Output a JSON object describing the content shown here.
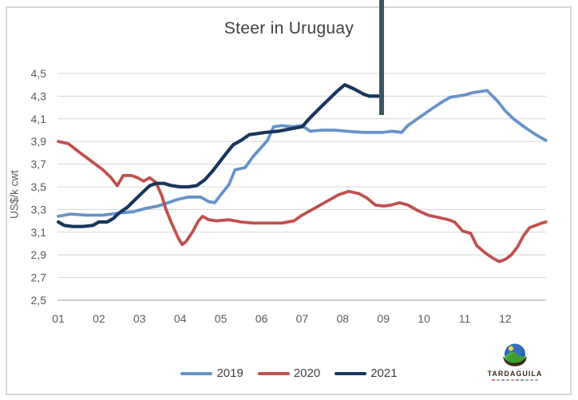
{
  "chart_data": {
    "type": "line",
    "title": "Steer in Uruguay",
    "ylabel": "US$/k cwt",
    "ylim": [
      2.5,
      4.5
    ],
    "ytick_step": 0.2,
    "decimal_separator": ",",
    "x_range": [
      1,
      13
    ],
    "grid": true,
    "legend_position": "bottom",
    "y_tick_labels": [
      "4,5",
      "4,3",
      "4,1",
      "3,9",
      "3,7",
      "3,5",
      "3,3",
      "3,1",
      "2,9",
      "2,7",
      "2,5"
    ],
    "x_tick_labels": [
      "01",
      "02",
      "03",
      "04",
      "05",
      "06",
      "07",
      "08",
      "09",
      "10",
      "11",
      "12"
    ],
    "series": [
      {
        "name": "2019",
        "color": "#6593c9",
        "points": [
          [
            1.0,
            3.24
          ],
          [
            1.3,
            3.26
          ],
          [
            1.7,
            3.25
          ],
          [
            2.1,
            3.25
          ],
          [
            2.5,
            3.27
          ],
          [
            2.85,
            3.28
          ],
          [
            3.15,
            3.31
          ],
          [
            3.45,
            3.33
          ],
          [
            3.7,
            3.36
          ],
          [
            3.95,
            3.39
          ],
          [
            4.2,
            3.41
          ],
          [
            4.5,
            3.41
          ],
          [
            4.7,
            3.37
          ],
          [
            4.85,
            3.36
          ],
          [
            5.0,
            3.43
          ],
          [
            5.2,
            3.52
          ],
          [
            5.35,
            3.65
          ],
          [
            5.6,
            3.67
          ],
          [
            5.8,
            3.77
          ],
          [
            6.0,
            3.85
          ],
          [
            6.15,
            3.91
          ],
          [
            6.3,
            4.03
          ],
          [
            6.5,
            4.04
          ],
          [
            6.75,
            4.03
          ],
          [
            7.0,
            4.04
          ],
          [
            7.2,
            3.99
          ],
          [
            7.5,
            4.0
          ],
          [
            7.8,
            4.0
          ],
          [
            8.1,
            3.99
          ],
          [
            8.5,
            3.98
          ],
          [
            8.8,
            3.98
          ],
          [
            9.0,
            3.98
          ],
          [
            9.2,
            3.99
          ],
          [
            9.45,
            3.98
          ],
          [
            9.6,
            4.04
          ],
          [
            9.8,
            4.09
          ],
          [
            10.0,
            4.14
          ],
          [
            10.2,
            4.19
          ],
          [
            10.45,
            4.25
          ],
          [
            10.65,
            4.29
          ],
          [
            11.0,
            4.31
          ],
          [
            11.2,
            4.33
          ],
          [
            11.55,
            4.35
          ],
          [
            11.8,
            4.26
          ],
          [
            12.0,
            4.17
          ],
          [
            12.2,
            4.1
          ],
          [
            12.5,
            4.02
          ],
          [
            12.75,
            3.96
          ],
          [
            13.0,
            3.91
          ]
        ]
      },
      {
        "name": "2020",
        "color": "#c0504d",
        "points": [
          [
            1.0,
            3.9
          ],
          [
            1.25,
            3.88
          ],
          [
            1.5,
            3.81
          ],
          [
            1.8,
            3.73
          ],
          [
            2.1,
            3.65
          ],
          [
            2.3,
            3.58
          ],
          [
            2.45,
            3.51
          ],
          [
            2.6,
            3.6
          ],
          [
            2.8,
            3.6
          ],
          [
            2.95,
            3.58
          ],
          [
            3.1,
            3.55
          ],
          [
            3.25,
            3.58
          ],
          [
            3.4,
            3.54
          ],
          [
            3.55,
            3.42
          ],
          [
            3.65,
            3.3
          ],
          [
            3.8,
            3.17
          ],
          [
            3.95,
            3.05
          ],
          [
            4.05,
            2.99
          ],
          [
            4.15,
            3.02
          ],
          [
            4.3,
            3.1
          ],
          [
            4.45,
            3.2
          ],
          [
            4.55,
            3.24
          ],
          [
            4.7,
            3.21
          ],
          [
            4.9,
            3.2
          ],
          [
            5.2,
            3.21
          ],
          [
            5.5,
            3.19
          ],
          [
            5.8,
            3.18
          ],
          [
            6.1,
            3.18
          ],
          [
            6.5,
            3.18
          ],
          [
            6.8,
            3.2
          ],
          [
            7.0,
            3.25
          ],
          [
            7.3,
            3.31
          ],
          [
            7.6,
            3.37
          ],
          [
            7.9,
            3.43
          ],
          [
            8.15,
            3.46
          ],
          [
            8.4,
            3.44
          ],
          [
            8.6,
            3.4
          ],
          [
            8.8,
            3.34
          ],
          [
            9.0,
            3.33
          ],
          [
            9.2,
            3.34
          ],
          [
            9.4,
            3.36
          ],
          [
            9.6,
            3.34
          ],
          [
            9.85,
            3.29
          ],
          [
            10.1,
            3.25
          ],
          [
            10.35,
            3.23
          ],
          [
            10.6,
            3.21
          ],
          [
            10.75,
            3.19
          ],
          [
            10.95,
            3.11
          ],
          [
            11.15,
            3.09
          ],
          [
            11.3,
            2.98
          ],
          [
            11.5,
            2.92
          ],
          [
            11.7,
            2.87
          ],
          [
            11.85,
            2.84
          ],
          [
            12.0,
            2.86
          ],
          [
            12.15,
            2.9
          ],
          [
            12.3,
            2.97
          ],
          [
            12.45,
            3.07
          ],
          [
            12.6,
            3.14
          ],
          [
            12.75,
            3.16
          ],
          [
            12.9,
            3.18
          ],
          [
            13.0,
            3.19
          ]
        ]
      },
      {
        "name": "2021",
        "color": "#17365d",
        "points": [
          [
            1.0,
            3.19
          ],
          [
            1.15,
            3.16
          ],
          [
            1.35,
            3.15
          ],
          [
            1.6,
            3.15
          ],
          [
            1.85,
            3.16
          ],
          [
            2.0,
            3.19
          ],
          [
            2.2,
            3.19
          ],
          [
            2.35,
            3.22
          ],
          [
            2.5,
            3.27
          ],
          [
            2.7,
            3.32
          ],
          [
            2.9,
            3.39
          ],
          [
            3.1,
            3.46
          ],
          [
            3.25,
            3.51
          ],
          [
            3.4,
            3.53
          ],
          [
            3.6,
            3.53
          ],
          [
            3.8,
            3.51
          ],
          [
            4.0,
            3.5
          ],
          [
            4.2,
            3.5
          ],
          [
            4.4,
            3.51
          ],
          [
            4.6,
            3.56
          ],
          [
            4.8,
            3.64
          ],
          [
            4.95,
            3.71
          ],
          [
            5.1,
            3.78
          ],
          [
            5.3,
            3.87
          ],
          [
            5.5,
            3.91
          ],
          [
            5.7,
            3.96
          ],
          [
            5.9,
            3.97
          ],
          [
            6.1,
            3.98
          ],
          [
            6.4,
            3.99
          ],
          [
            6.7,
            4.01
          ],
          [
            7.0,
            4.03
          ],
          [
            7.2,
            4.11
          ],
          [
            7.45,
            4.2
          ],
          [
            7.65,
            4.27
          ],
          [
            7.85,
            4.34
          ],
          [
            8.05,
            4.4
          ],
          [
            8.3,
            4.36
          ],
          [
            8.5,
            4.32
          ],
          [
            8.65,
            4.3
          ],
          [
            8.9,
            4.3
          ]
        ]
      }
    ],
    "annotation_line": {
      "x_month": 8.95,
      "color": "#3e5562"
    }
  },
  "logo": {
    "text": "TARDAGUILA"
  }
}
